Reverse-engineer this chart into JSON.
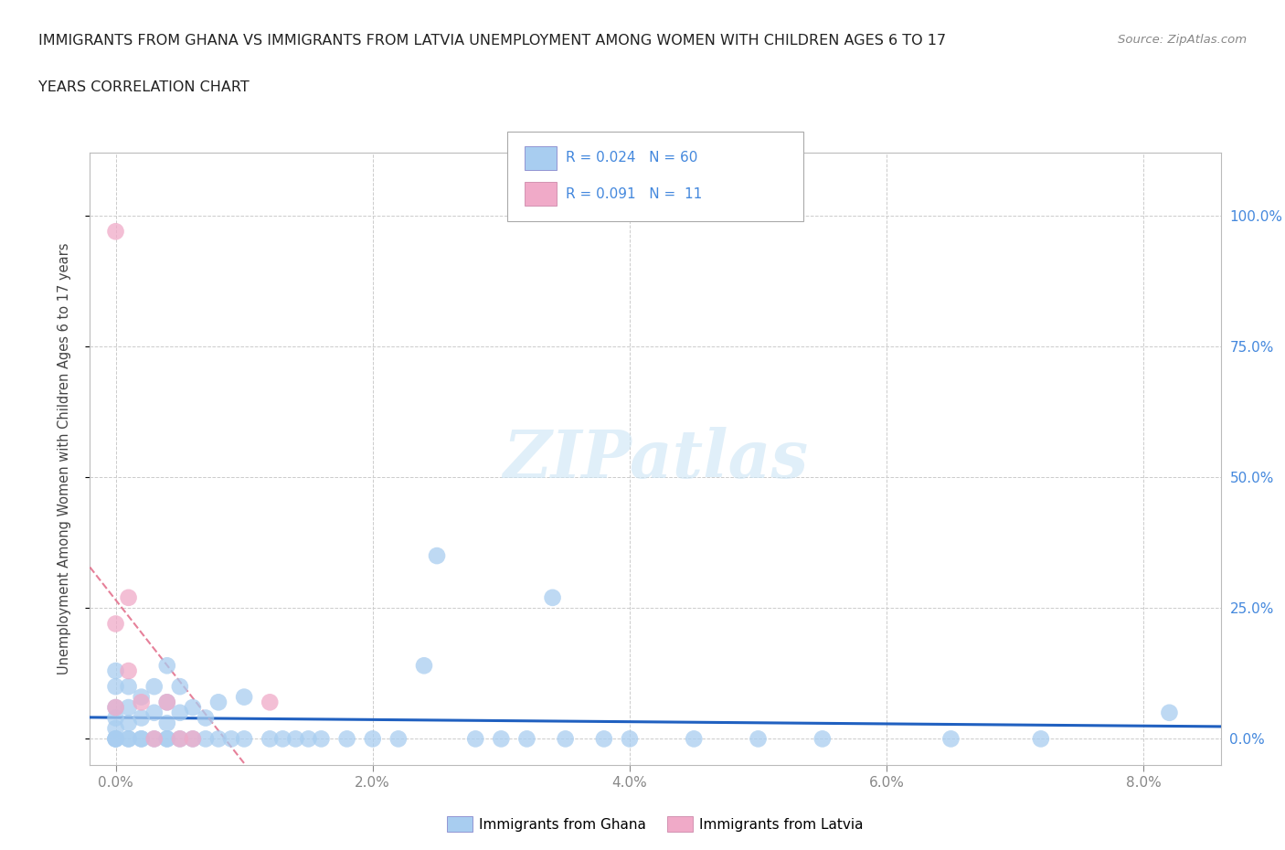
{
  "title_line1": "IMMIGRANTS FROM GHANA VS IMMIGRANTS FROM LATVIA UNEMPLOYMENT AMONG WOMEN WITH CHILDREN AGES 6 TO 17",
  "title_line2": "YEARS CORRELATION CHART",
  "source": "Source: ZipAtlas.com",
  "xlabel_values": [
    0.0,
    0.02,
    0.04,
    0.06,
    0.08
  ],
  "ylabel_values": [
    0.0,
    0.25,
    0.5,
    0.75,
    1.0
  ],
  "xlim": [
    -0.002,
    0.086
  ],
  "ylim": [
    -0.05,
    1.12
  ],
  "ghana_color": "#a8cdf0",
  "latvia_color": "#f0aac8",
  "trend_ghana_color": "#2060c0",
  "trend_latvia_color": "#e06080",
  "right_label_color": "#4488dd",
  "ghana_R": 0.024,
  "ghana_N": 60,
  "latvia_R": 0.091,
  "latvia_N": 11,
  "watermark": "ZIPatlas",
  "ylabel_label": "Unemployment Among Women with Children Ages 6 to 17 years",
  "ghana_x": [
    0.0,
    0.0,
    0.0,
    0.0,
    0.0,
    0.0,
    0.0,
    0.0,
    0.001,
    0.001,
    0.001,
    0.001,
    0.001,
    0.002,
    0.002,
    0.002,
    0.002,
    0.003,
    0.003,
    0.003,
    0.004,
    0.004,
    0.004,
    0.004,
    0.004,
    0.005,
    0.005,
    0.005,
    0.006,
    0.006,
    0.007,
    0.007,
    0.008,
    0.008,
    0.009,
    0.01,
    0.01,
    0.012,
    0.013,
    0.014,
    0.015,
    0.016,
    0.018,
    0.02,
    0.022,
    0.024,
    0.025,
    0.028,
    0.03,
    0.032,
    0.034,
    0.035,
    0.038,
    0.04,
    0.045,
    0.05,
    0.055,
    0.065,
    0.072,
    0.082
  ],
  "ghana_y": [
    0.0,
    0.0,
    0.0,
    0.02,
    0.04,
    0.06,
    0.1,
    0.13,
    0.0,
    0.0,
    0.03,
    0.06,
    0.1,
    0.0,
    0.0,
    0.04,
    0.08,
    0.0,
    0.05,
    0.1,
    0.0,
    0.0,
    0.03,
    0.07,
    0.14,
    0.0,
    0.05,
    0.1,
    0.0,
    0.06,
    0.0,
    0.04,
    0.0,
    0.07,
    0.0,
    0.0,
    0.08,
    0.0,
    0.0,
    0.0,
    0.0,
    0.0,
    0.0,
    0.0,
    0.0,
    0.14,
    0.35,
    0.0,
    0.0,
    0.0,
    0.27,
    0.0,
    0.0,
    0.0,
    0.0,
    0.0,
    0.0,
    0.0,
    0.0,
    0.05
  ],
  "latvia_x": [
    0.0,
    0.0,
    0.0,
    0.001,
    0.001,
    0.002,
    0.003,
    0.004,
    0.005,
    0.006,
    0.012
  ],
  "latvia_y": [
    0.97,
    0.22,
    0.06,
    0.27,
    0.13,
    0.07,
    0.0,
    0.07,
    0.0,
    0.0,
    0.07
  ]
}
